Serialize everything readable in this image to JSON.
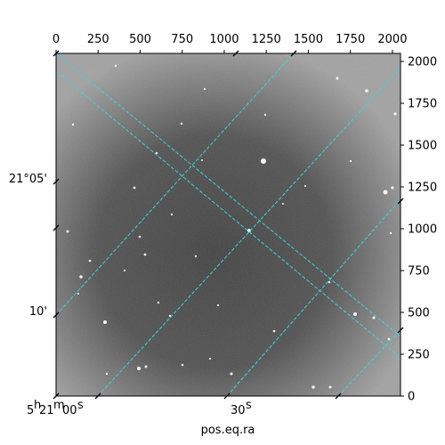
{
  "chart_data": {
    "type": "image",
    "image_size": [
      2048,
      2048
    ],
    "pixel_ticks": {
      "x": [
        0,
        250,
        500,
        750,
        1000,
        1250,
        1500,
        1750,
        2000
      ],
      "y": [
        0,
        250,
        500,
        750,
        1000,
        1250,
        1500,
        1750,
        2000
      ],
      "x_labels": [
        "0",
        "250",
        "500",
        "750",
        "1000",
        "1250",
        "1500",
        "1750",
        "2000"
      ],
      "y_labels": [
        "0",
        "250",
        "500",
        "750",
        "1000",
        "1250",
        "1500",
        "1750",
        "2000"
      ]
    },
    "world_labels": {
      "ra": [
        {
          "base": "5",
          "h": "h",
          "min": "21",
          "m": "m",
          "sec": "00",
          "s": "s"
        },
        {
          "base": "30",
          "s": "s"
        }
      ],
      "dec": [
        "21°05'",
        "10'"
      ]
    },
    "xlabel": "pos.eq.ra",
    "ylabel": "",
    "grid": true,
    "grid_color": "#3fd4d4",
    "colormap": "gray"
  }
}
